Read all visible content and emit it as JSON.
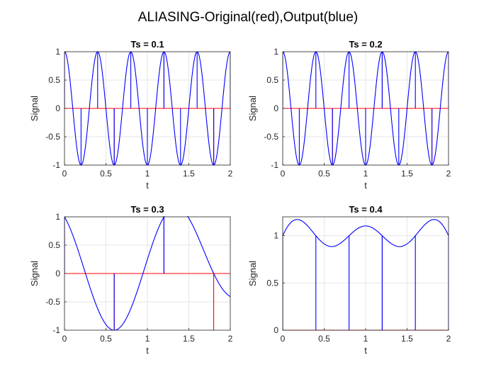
{
  "figure": {
    "title": "ALIASING-Original(red),Output(blue)"
  },
  "colors": {
    "original": "#ff0000",
    "output": "#0000ff",
    "grid": "#e6e6e6",
    "axis": "#262626"
  },
  "chart_data": [
    {
      "type": "line",
      "title": "Ts = 0.1",
      "xlabel": "t",
      "ylabel": "Signal",
      "xlim": [
        0,
        2
      ],
      "ylim": [
        -1,
        1
      ],
      "xticks": [
        0,
        0.5,
        1,
        1.5,
        2
      ],
      "xtick_labels": [
        "0",
        "0.5",
        "1",
        "1.5",
        "2"
      ],
      "yticks": [
        1,
        0.5,
        0,
        -0.5,
        -1
      ],
      "ytick_labels": [
        "1",
        "0.5",
        "0",
        "-0.5",
        "-1"
      ],
      "grid": true,
      "series": [
        {
          "kind": "stem",
          "color": "original",
          "x": [
            0,
            0.6,
            1.2,
            1.8
          ],
          "y": [
            1,
            -1,
            1,
            -1
          ]
        },
        {
          "kind": "stem",
          "color": "output",
          "x": [
            0,
            0.1,
            0.2,
            0.3,
            0.4,
            0.5,
            0.6,
            0.7,
            0.8,
            0.9,
            1.0,
            1.1,
            1.2,
            1.3,
            1.4,
            1.5,
            1.6,
            1.7,
            1.8,
            1.9,
            2.0
          ],
          "y": [
            1,
            0,
            -1,
            0,
            1,
            0,
            -1,
            0,
            1,
            0,
            -1,
            0,
            1,
            0,
            -1,
            0,
            1,
            0,
            -1,
            0,
            1
          ]
        },
        {
          "kind": "line",
          "color": "output",
          "function": "cos(2*pi*2.5*t)"
        }
      ]
    },
    {
      "type": "line",
      "title": "Ts = 0.2",
      "xlabel": "t",
      "ylabel": "Signal",
      "xlim": [
        0,
        2
      ],
      "ylim": [
        -1,
        1
      ],
      "xticks": [
        0,
        0.5,
        1,
        1.5,
        2
      ],
      "xtick_labels": [
        "0",
        "0.5",
        "1",
        "1.5",
        "2"
      ],
      "yticks": [
        1,
        0.5,
        0,
        -0.5,
        -1
      ],
      "ytick_labels": [
        "1",
        "0.5",
        "0",
        "-0.5",
        "-1"
      ],
      "grid": true,
      "series": [
        {
          "kind": "stem",
          "color": "original",
          "x": [
            0,
            0.6,
            1.2,
            1.8
          ],
          "y": [
            1,
            -1,
            1,
            -1
          ]
        },
        {
          "kind": "stem",
          "color": "output",
          "x": [
            0,
            0.2,
            0.4,
            0.6,
            0.8,
            1.0,
            1.2,
            1.4,
            1.6,
            1.8,
            2.0
          ],
          "y": [
            1,
            -1,
            1,
            -1,
            1,
            -1,
            1,
            -1,
            1,
            -1,
            1
          ]
        },
        {
          "kind": "line",
          "color": "output",
          "function": "cos(2*pi*2.5*t)"
        }
      ]
    },
    {
      "type": "line",
      "title": "Ts = 0.3",
      "xlabel": "t",
      "ylabel": "Signal",
      "xlim": [
        0,
        2
      ],
      "ylim": [
        -1,
        1
      ],
      "xticks": [
        0,
        0.5,
        1,
        1.5,
        2
      ],
      "xtick_labels": [
        "0",
        "0.5",
        "1",
        "1.5",
        "2"
      ],
      "yticks": [
        1,
        0.5,
        0,
        -0.5,
        -1
      ],
      "ytick_labels": [
        "1",
        "0.5",
        "0",
        "-0.5",
        "-1"
      ],
      "grid": true,
      "series": [
        {
          "kind": "stem",
          "color": "original",
          "x": [
            0,
            0.6,
            1.2,
            1.8
          ],
          "y": [
            1,
            -1,
            1,
            -1
          ]
        },
        {
          "kind": "stem",
          "color": "output",
          "x": [
            0,
            0.6,
            1.2
          ],
          "y": [
            1,
            -1,
            1
          ]
        },
        {
          "kind": "line",
          "color": "output",
          "function": "sinc interpolation of samples"
        }
      ]
    },
    {
      "type": "line",
      "title": "Ts = 0.4",
      "xlabel": "t",
      "ylabel": "Signal",
      "xlim": [
        0,
        2
      ],
      "ylim": [
        0,
        1.2
      ],
      "xticks": [
        0,
        0.5,
        1,
        1.5,
        2
      ],
      "xtick_labels": [
        "0",
        "0.5",
        "1",
        "1.5",
        "2"
      ],
      "yticks": [
        1,
        0.5,
        0
      ],
      "ytick_labels": [
        "1",
        "0.5",
        "0"
      ],
      "grid": true,
      "series": [
        {
          "kind": "stem",
          "color": "original",
          "x": [
            0,
            0.6,
            1.2,
            1.8
          ],
          "y": [
            1,
            0,
            1,
            0
          ]
        },
        {
          "kind": "stem",
          "color": "output",
          "x": [
            0,
            0.4,
            0.8,
            1.2,
            1.6,
            2.0
          ],
          "y": [
            1,
            1,
            1,
            1,
            1,
            1
          ]
        },
        {
          "kind": "line",
          "color": "output",
          "function": "sinc interpolation of samples"
        }
      ]
    }
  ]
}
